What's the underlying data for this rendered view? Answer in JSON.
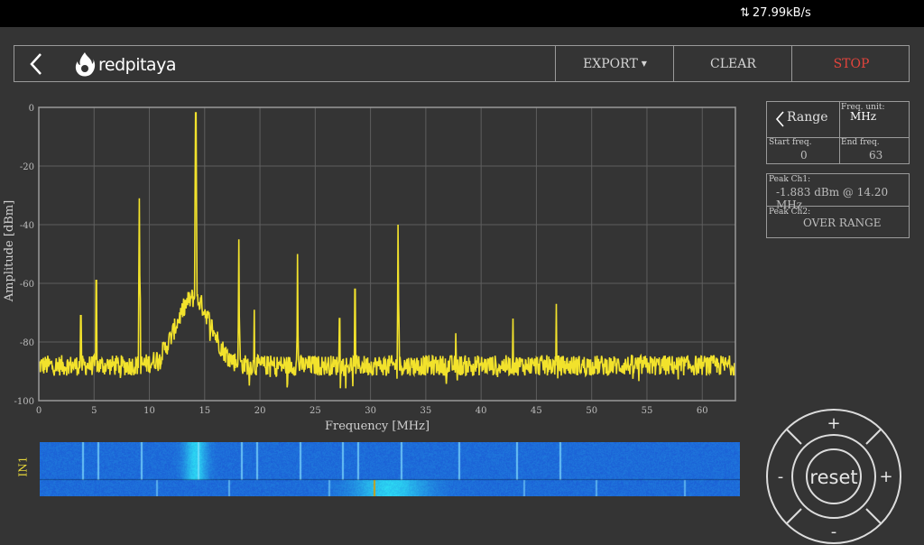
{
  "status": {
    "net_speed": "27.99kB/s"
  },
  "header": {
    "brand": "redpitaya",
    "export_label": "EXPORT",
    "clear_label": "CLEAR",
    "stop_label": "STOP"
  },
  "range_panel": {
    "range_label": "Range",
    "freq_unit_label": "Freq. unit:",
    "freq_unit_value": "MHz",
    "start_label": "Start freq.",
    "start_value": "0",
    "end_label": "End freq.",
    "end_value": "63"
  },
  "peak_panel": {
    "ch1_label": "Peak Ch1:",
    "ch1_value": "-1.883  dBm @ 14.20  MHz",
    "ch2_label": "Peak Ch2:",
    "ch2_value": "OVER RANGE"
  },
  "waterfall": {
    "channel_label": "IN1"
  },
  "control_pad": {
    "reset_label": "reset",
    "up_label": "+",
    "down_label": "-",
    "left_label": "-",
    "right_label": "+"
  },
  "chart_data": {
    "type": "line",
    "xlabel": "Frequency   [MHz]",
    "ylabel": "Amplitude  [dBm]",
    "xlim": [
      0,
      63
    ],
    "ylim": [
      -100,
      0
    ],
    "x_ticks": [
      0,
      5,
      10,
      15,
      20,
      25,
      30,
      35,
      40,
      45,
      50,
      55,
      60
    ],
    "y_ticks": [
      0,
      -20,
      -40,
      -60,
      -80,
      -100
    ],
    "grid": true,
    "series": [
      {
        "color": "#f2e22c",
        "noise_floor_dbm": -88,
        "peaks": [
          {
            "x": 3.8,
            "y": -71
          },
          {
            "x": 5.2,
            "y": -59
          },
          {
            "x": 9.1,
            "y": -31
          },
          {
            "x": 14.2,
            "y": -1.883
          },
          {
            "x": 18.1,
            "y": -45
          },
          {
            "x": 19.5,
            "y": -69
          },
          {
            "x": 23.4,
            "y": -50
          },
          {
            "x": 27.2,
            "y": -72
          },
          {
            "x": 28.6,
            "y": -62
          },
          {
            "x": 32.5,
            "y": -40
          },
          {
            "x": 37.7,
            "y": -77
          },
          {
            "x": 42.9,
            "y": -72
          },
          {
            "x": 46.8,
            "y": -67
          }
        ],
        "hump": {
          "center": 14.0,
          "peak_dbm": -65,
          "width_mhz": 2.2
        }
      }
    ]
  }
}
